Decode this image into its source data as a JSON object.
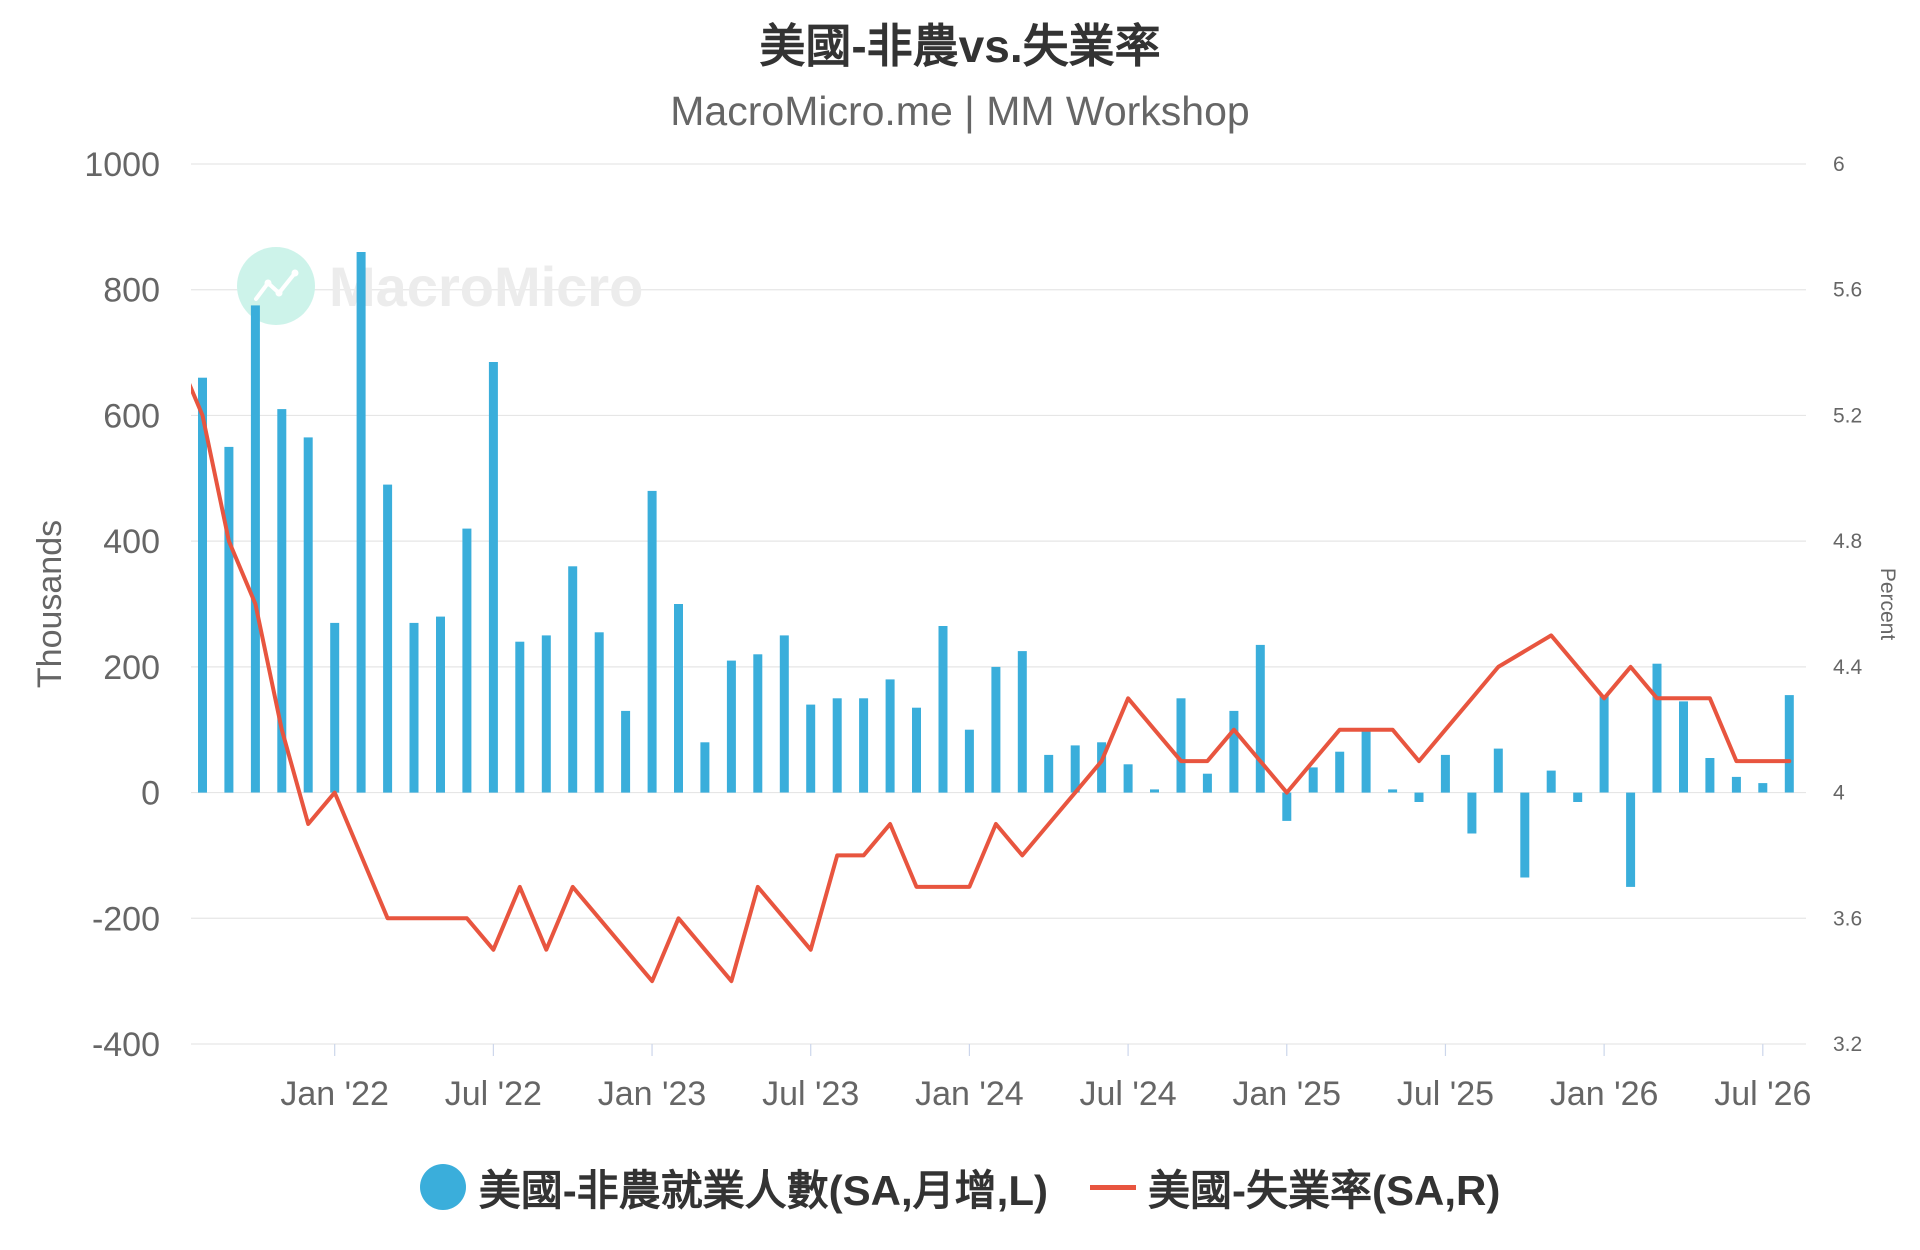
{
  "watermark": {
    "icon": "macromicro-logo-icon",
    "text": "MacroMicro"
  },
  "chart_data": {
    "type": "bar",
    "title": "美國-非農vs.失業率",
    "subtitle": "MacroMicro.me | MM Workshop",
    "legend": "bottom",
    "grid": true,
    "xlim": [
      "2021-07-18",
      "2026-08-20"
    ],
    "x_ticks": [
      "2022-01",
      "2022-07",
      "2023-01",
      "2023-07",
      "2024-01",
      "2024-07",
      "2025-01",
      "2025-07",
      "2026-01",
      "2026-07"
    ],
    "x_tick_labels": [
      "Jan '22",
      "Jul '22",
      "Jan '23",
      "Jul '23",
      "Jan '24",
      "Jul '24",
      "Jan '25",
      "Jul '25",
      "Jan '26",
      "Jul '26"
    ],
    "y_left": {
      "label": "Thousands",
      "lim": [
        -400,
        1000
      ],
      "ticks": [
        1000,
        800,
        600,
        400,
        200,
        0,
        -200,
        -400
      ]
    },
    "y_right": {
      "label": "Percent",
      "lim": [
        3.2,
        6
      ],
      "ticks": [
        6,
        5.6,
        5.2,
        4.8,
        4.4,
        4,
        3.6,
        3.2
      ]
    },
    "x": [
      "2021-07",
      "2021-08",
      "2021-09",
      "2021-10",
      "2021-11",
      "2021-12",
      "2022-01",
      "2022-02",
      "2022-03",
      "2022-04",
      "2022-05",
      "2022-06",
      "2022-07",
      "2022-08",
      "2022-09",
      "2022-10",
      "2022-11",
      "2022-12",
      "2023-01",
      "2023-02",
      "2023-03",
      "2023-04",
      "2023-05",
      "2023-06",
      "2023-07",
      "2023-08",
      "2023-09",
      "2023-10",
      "2023-11",
      "2023-12",
      "2024-01",
      "2024-02",
      "2024-03",
      "2024-04",
      "2024-05",
      "2024-06",
      "2024-07",
      "2024-08",
      "2024-09",
      "2024-10",
      "2024-11",
      "2024-12",
      "2025-01",
      "2025-02",
      "2025-03",
      "2025-04",
      "2025-05",
      "2025-06",
      "2025-07",
      "2025-08",
      "2025-09",
      "2025-10",
      "2025-11",
      "2025-12",
      "2026-01",
      "2026-02",
      "2026-03",
      "2026-04",
      "2026-05",
      "2026-06",
      "2026-07",
      "2026-08"
    ],
    "series": [
      {
        "name": "美國-非農就業人數(SA,月增,L)",
        "type": "bar",
        "axis": "left",
        "color": "#3aaedb",
        "values": [
          null,
          660,
          550,
          775,
          610,
          565,
          270,
          860,
          490,
          270,
          280,
          420,
          685,
          240,
          250,
          360,
          255,
          130,
          480,
          300,
          80,
          210,
          220,
          250,
          140,
          150,
          150,
          180,
          135,
          265,
          100,
          200,
          225,
          60,
          75,
          80,
          45,
          5,
          150,
          30,
          130,
          235,
          -45,
          40,
          65,
          100,
          5,
          -15,
          60,
          -65,
          70,
          -135,
          35,
          -15,
          155,
          -150,
          205,
          145,
          55,
          25,
          15,
          155
        ]
      },
      {
        "name": "美國-失業率(SA,R)",
        "type": "line",
        "axis": "right",
        "color": "#e8553f",
        "values": [
          5.4,
          5.2,
          4.8,
          4.6,
          4.2,
          3.9,
          4.0,
          3.8,
          3.6,
          3.6,
          3.6,
          3.6,
          3.5,
          3.7,
          3.5,
          3.7,
          3.6,
          3.5,
          3.4,
          3.6,
          3.5,
          3.4,
          3.7,
          3.6,
          3.5,
          3.8,
          3.8,
          3.9,
          3.7,
          3.7,
          3.7,
          3.9,
          3.8,
          3.9,
          4.0,
          4.1,
          4.3,
          4.2,
          4.1,
          4.1,
          4.2,
          4.1,
          4.0,
          4.1,
          4.2,
          4.2,
          4.2,
          4.1,
          4.2,
          4.3,
          4.4,
          null,
          4.5,
          4.4,
          4.3,
          4.4,
          4.3,
          4.3,
          4.3,
          4.1,
          4.1,
          4.1
        ]
      }
    ]
  }
}
